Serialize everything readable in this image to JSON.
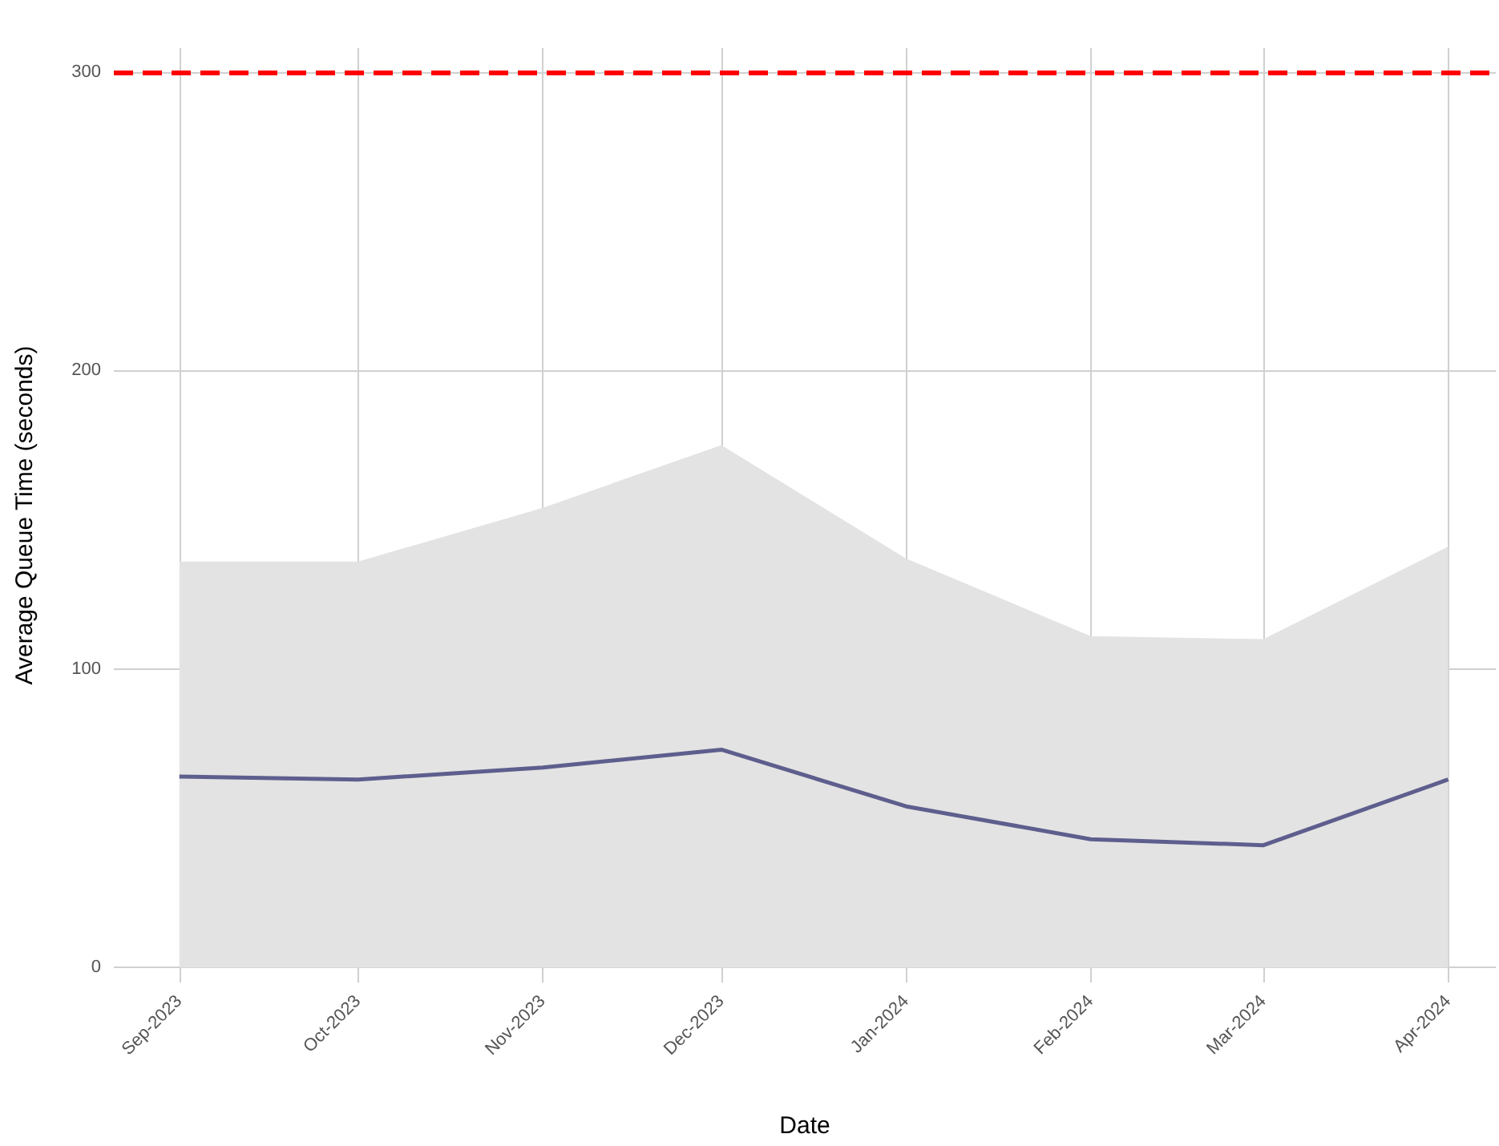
{
  "chart_data": {
    "type": "line",
    "xlabel": "Date",
    "ylabel": "Average Queue Time (seconds)",
    "x": [
      "2023-09",
      "2023-10",
      "2023-11",
      "2023-12",
      "2024-01",
      "2024-02",
      "2024-03",
      "2024-04"
    ],
    "series": [
      {
        "color": "#5e5e8e",
        "values": [
          64,
          63,
          67,
          73,
          54,
          43,
          41,
          63
        ],
        "lower": [
          0,
          0,
          0,
          0,
          0,
          0,
          0,
          0
        ],
        "upper": [
          136,
          136,
          154,
          175,
          137,
          111,
          110,
          141
        ]
      }
    ],
    "xlim": [
      "2023-08-21",
      "2024-04-09"
    ],
    "xticks": [
      {
        "value": "2023-09",
        "label": "Sep-2023"
      },
      {
        "value": "2023-10",
        "label": "Oct-2023"
      },
      {
        "value": "2023-11",
        "label": "Nov-2023"
      },
      {
        "value": "2023-12",
        "label": "Dec-2023"
      },
      {
        "value": "2024-01",
        "label": "Jan-2024"
      },
      {
        "value": "2024-02",
        "label": "Feb-2024"
      },
      {
        "value": "2024-03",
        "label": "Mar-2024"
      },
      {
        "value": "2024-04",
        "label": "Apr-2024"
      }
    ],
    "ylim": [
      -5,
      308
    ],
    "yticks": [
      0,
      100,
      200,
      300
    ],
    "ref_lines": [
      {
        "axis": "y",
        "value": 300,
        "color": "#ff0000",
        "line_style": "dashed"
      }
    ],
    "grid": true,
    "marker": "none",
    "line_style": "solid"
  }
}
